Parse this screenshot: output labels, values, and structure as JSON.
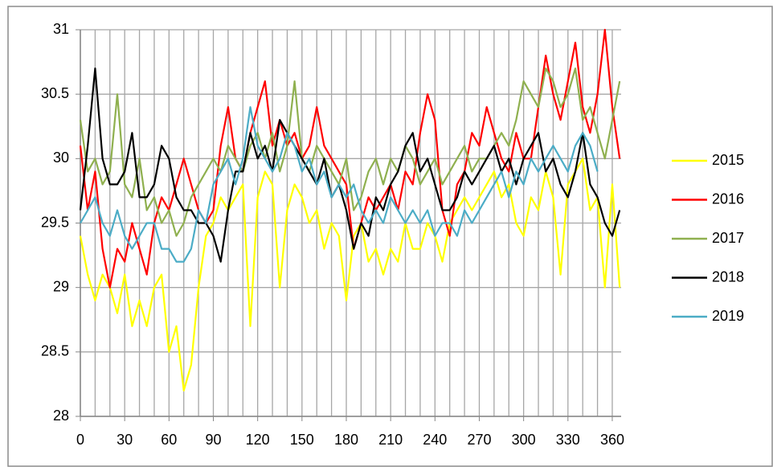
{
  "chart_data": {
    "type": "line",
    "x": [
      0,
      5,
      10,
      15,
      20,
      25,
      30,
      35,
      40,
      45,
      50,
      55,
      60,
      65,
      70,
      75,
      80,
      85,
      90,
      95,
      100,
      105,
      110,
      115,
      120,
      125,
      130,
      135,
      140,
      145,
      150,
      155,
      160,
      165,
      170,
      175,
      180,
      185,
      190,
      195,
      200,
      205,
      210,
      215,
      220,
      225,
      230,
      235,
      240,
      245,
      250,
      255,
      260,
      265,
      270,
      275,
      280,
      285,
      290,
      295,
      300,
      305,
      310,
      315,
      320,
      325,
      330,
      335,
      340,
      345,
      350,
      355,
      360,
      365
    ],
    "series": [
      {
        "name": "2015",
        "color": "#ffff00",
        "values": [
          29.4,
          29.1,
          28.9,
          29.1,
          29.0,
          28.8,
          29.1,
          28.7,
          28.9,
          28.7,
          29.0,
          29.1,
          28.5,
          28.7,
          28.2,
          28.4,
          29.0,
          29.4,
          29.5,
          29.7,
          29.6,
          29.7,
          29.8,
          28.7,
          29.7,
          29.9,
          29.8,
          29.0,
          29.6,
          29.8,
          29.7,
          29.5,
          29.6,
          29.3,
          29.5,
          29.4,
          28.9,
          29.4,
          29.5,
          29.2,
          29.3,
          29.1,
          29.3,
          29.2,
          29.5,
          29.3,
          29.3,
          29.5,
          29.4,
          29.2,
          29.5,
          29.6,
          29.7,
          29.6,
          29.7,
          29.8,
          29.9,
          29.7,
          29.8,
          29.5,
          29.4,
          29.7,
          29.6,
          29.9,
          29.7,
          29.1,
          29.8,
          29.9,
          30.0,
          29.6,
          29.7,
          29.0,
          29.8,
          29.0
        ]
      },
      {
        "name": "2016",
        "color": "#ff0000",
        "values": [
          30.1,
          29.6,
          29.9,
          29.3,
          29.0,
          29.3,
          29.2,
          29.5,
          29.3,
          29.1,
          29.5,
          29.7,
          29.6,
          29.8,
          30.0,
          29.8,
          29.6,
          29.5,
          29.6,
          30.1,
          30.4,
          30.0,
          29.9,
          30.2,
          30.4,
          30.6,
          30.1,
          30.3,
          30.1,
          30.2,
          30.0,
          30.1,
          30.4,
          30.1,
          30.0,
          29.9,
          29.8,
          29.3,
          29.5,
          29.7,
          29.6,
          29.7,
          29.8,
          29.6,
          29.9,
          29.8,
          30.2,
          30.5,
          30.3,
          29.6,
          29.4,
          29.8,
          29.9,
          30.2,
          30.1,
          30.4,
          30.2,
          30.0,
          29.9,
          30.2,
          30.0,
          30.0,
          30.4,
          30.8,
          30.5,
          30.3,
          30.6,
          30.9,
          30.4,
          30.2,
          30.5,
          31.0,
          30.4,
          30.0
        ]
      },
      {
        "name": "2017",
        "color": "#8fb04f",
        "values": [
          30.3,
          29.9,
          30.0,
          29.8,
          29.9,
          30.5,
          29.8,
          29.7,
          30.0,
          29.6,
          29.7,
          29.5,
          29.6,
          29.4,
          29.5,
          29.7,
          29.8,
          29.9,
          30.0,
          29.9,
          30.1,
          30.0,
          29.9,
          30.1,
          30.2,
          30.0,
          30.2,
          29.9,
          30.1,
          30.6,
          30.0,
          29.9,
          30.1,
          30.0,
          29.9,
          29.8,
          30.0,
          29.6,
          29.7,
          29.9,
          30.0,
          29.8,
          30.0,
          29.9,
          30.1,
          30.0,
          29.8,
          29.9,
          30.0,
          29.8,
          29.9,
          30.0,
          30.1,
          29.9,
          30.0,
          30.0,
          30.1,
          30.2,
          30.1,
          30.3,
          30.6,
          30.5,
          30.4,
          30.7,
          30.6,
          30.4,
          30.5,
          30.7,
          30.3,
          30.4,
          30.2,
          30.0,
          30.3,
          30.6
        ]
      },
      {
        "name": "2018",
        "color": "#000000",
        "values": [
          29.6,
          30.1,
          30.7,
          30.0,
          29.8,
          29.8,
          29.9,
          30.2,
          29.7,
          29.7,
          29.8,
          30.1,
          30.0,
          29.7,
          29.6,
          29.6,
          29.5,
          29.5,
          29.4,
          29.2,
          29.6,
          29.9,
          29.9,
          30.2,
          30.0,
          30.1,
          29.9,
          30.3,
          30.2,
          30.1,
          30.0,
          29.9,
          29.8,
          30.0,
          29.7,
          29.8,
          29.6,
          29.3,
          29.5,
          29.4,
          29.7,
          29.6,
          29.8,
          29.9,
          30.1,
          30.2,
          29.9,
          30.0,
          29.8,
          29.6,
          29.6,
          29.7,
          29.9,
          29.8,
          29.9,
          30.0,
          30.1,
          29.9,
          30.0,
          29.8,
          30.0,
          30.1,
          30.2,
          29.9,
          30.0,
          29.8,
          29.7,
          29.9,
          30.2,
          29.8,
          29.7,
          29.5,
          29.4,
          29.6
        ]
      },
      {
        "name": "2019",
        "color": "#4bacc6",
        "values": [
          29.5,
          29.6,
          29.7,
          29.5,
          29.4,
          29.6,
          29.4,
          29.3,
          29.4,
          29.5,
          29.5,
          29.3,
          29.3,
          29.2,
          29.2,
          29.3,
          29.6,
          29.5,
          29.8,
          29.9,
          30.0,
          29.8,
          30.0,
          30.4,
          30.1,
          30.0,
          29.9,
          30.0,
          30.2,
          30.1,
          29.9,
          30.0,
          29.8,
          29.9,
          29.7,
          29.8,
          29.7,
          29.8,
          29.6,
          29.5,
          29.6,
          29.5,
          29.7,
          29.6,
          29.5,
          29.6,
          29.5,
          29.6,
          29.4,
          29.5,
          29.5,
          29.4,
          29.6,
          29.5,
          29.6,
          29.7,
          29.8,
          29.9,
          29.7,
          29.9,
          29.8,
          30.0,
          29.9,
          30.0,
          30.1,
          30.0,
          29.9,
          30.1,
          30.2,
          30.1,
          29.9,
          null,
          null,
          null
        ]
      }
    ],
    "xlim": [
      0,
      366
    ],
    "xticks": [
      0,
      30,
      60,
      90,
      120,
      150,
      180,
      210,
      240,
      270,
      300,
      330,
      360
    ],
    "xminorticks": [
      10,
      20,
      40,
      50,
      70,
      80,
      100,
      110,
      130,
      140,
      160,
      170,
      190,
      200,
      220,
      230,
      250,
      260,
      280,
      290,
      310,
      320,
      340,
      350
    ],
    "ylim": [
      28,
      31
    ],
    "yticks": [
      28,
      28.5,
      29,
      29.5,
      30,
      30.5,
      31
    ],
    "grid": true,
    "legend": "right"
  }
}
